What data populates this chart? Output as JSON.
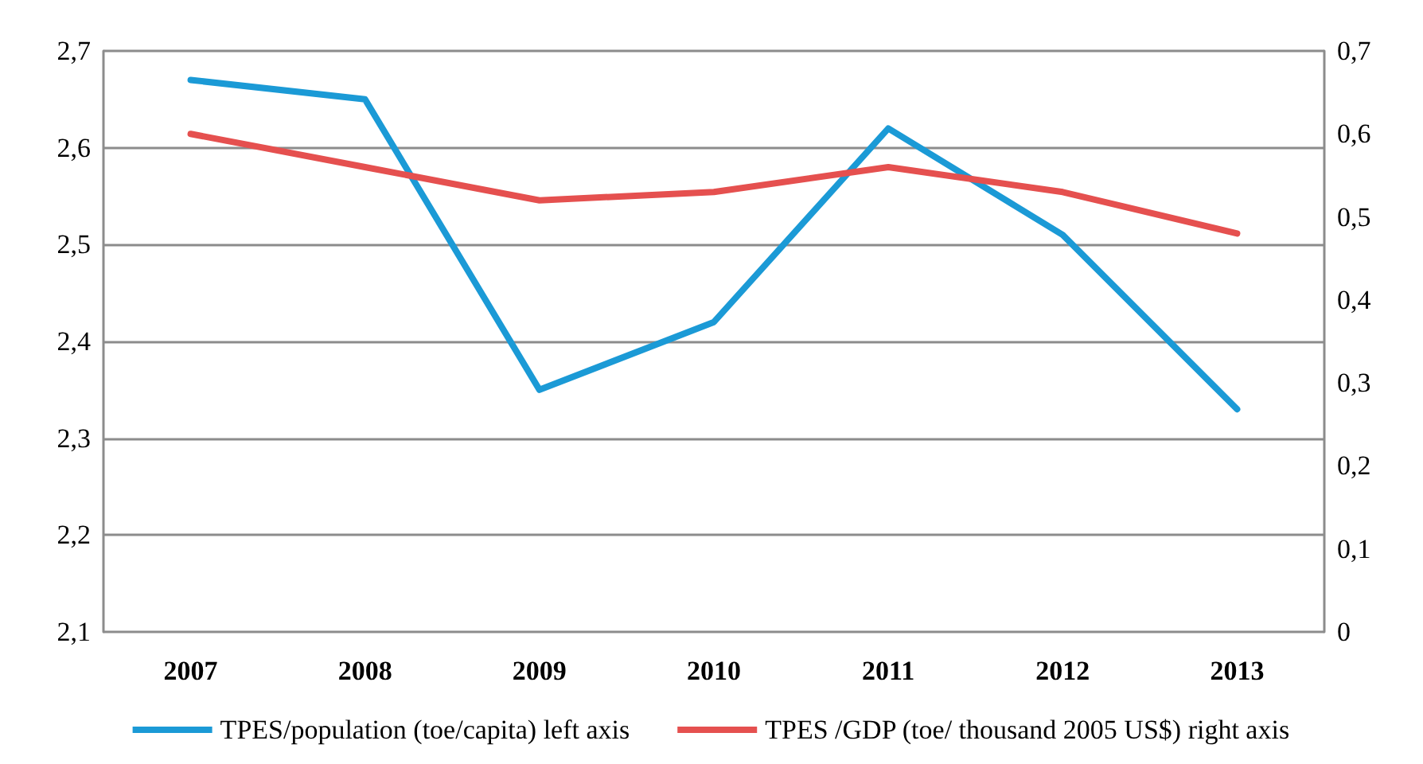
{
  "chart_data": {
    "type": "line",
    "categories": [
      "2007",
      "2008",
      "2009",
      "2010",
      "2011",
      "2012",
      "2013"
    ],
    "series": [
      {
        "name": "TPES/population (toe/capita) left axis",
        "color": "#1b9ad6",
        "values": [
          2.67,
          2.65,
          2.35,
          2.42,
          2.62,
          2.51,
          2.33
        ]
      },
      {
        "name": "TPES /GDP (toe/ thousand 2005 US$) right axis",
        "color": "#e5504f",
        "axis": "y2",
        "values": [
          0.6,
          0.56,
          0.52,
          0.53,
          0.56,
          0.53,
          0.48
        ]
      }
    ],
    "ylim": [
      2.1,
      2.7
    ],
    "yticks": [
      {
        "value": 2.1,
        "label": "2,1"
      },
      {
        "value": 2.2,
        "label": "2,2"
      },
      {
        "value": 2.3,
        "label": "2,3"
      },
      {
        "value": 2.4,
        "label": "2,4"
      },
      {
        "value": 2.5,
        "label": "2,5"
      },
      {
        "value": 2.6,
        "label": "2,6"
      },
      {
        "value": 2.7,
        "label": "2,7"
      }
    ],
    "y2lim": [
      0,
      0.7
    ],
    "y2ticks": [
      0,
      {
        "value": 0.1,
        "label": "0,1"
      },
      {
        "value": 0.2,
        "label": "0,2"
      },
      {
        "value": 0.3,
        "label": "0,3"
      },
      {
        "value": 0.4,
        "label": "0,4"
      },
      {
        "value": 0.5,
        "label": "0,5"
      },
      {
        "value": 0.6,
        "label": "0,6"
      },
      {
        "value": 0.7,
        "label": "0,7"
      }
    ],
    "grid": "y",
    "legend": "bottom",
    "marker": "none",
    "line_style": "solid"
  }
}
